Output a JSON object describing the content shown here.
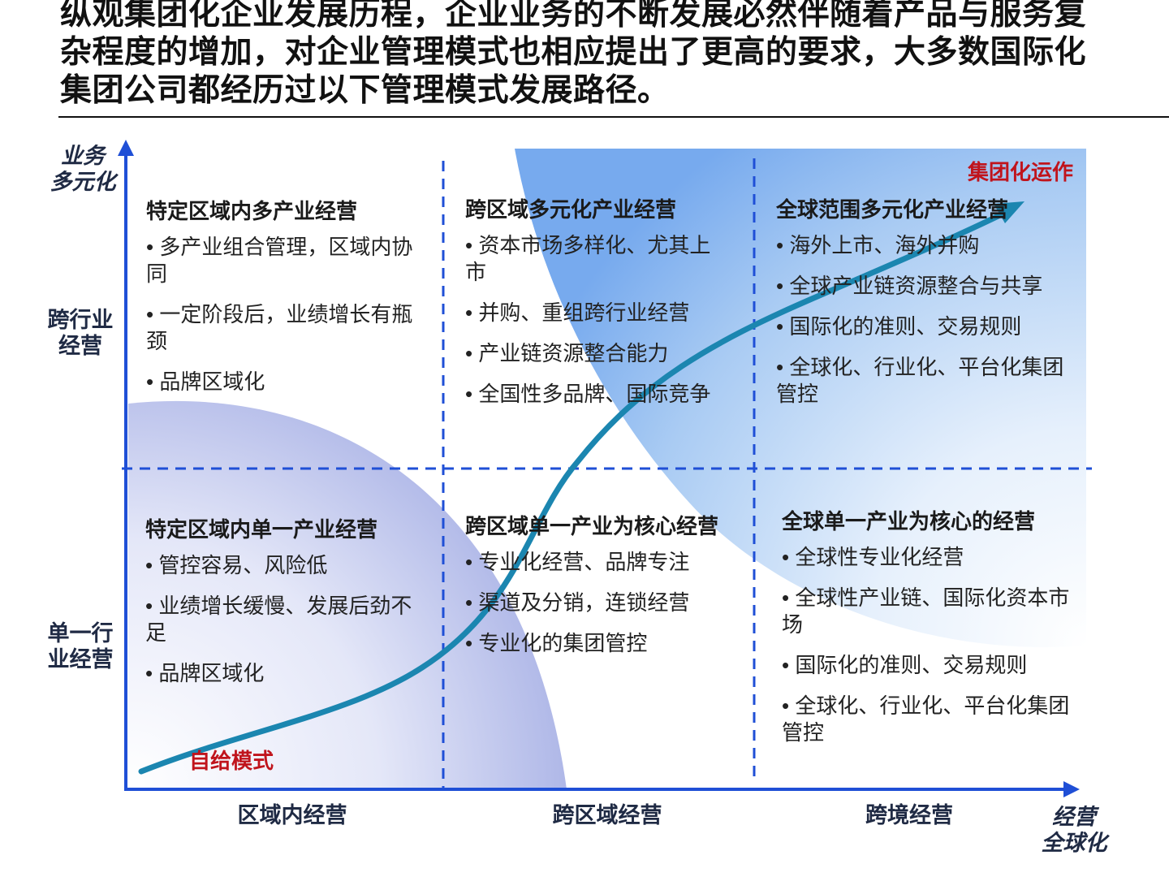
{
  "headline": "纵观集团化企业发展历程，企业业务的不断发展必然伴随着产品与服务复杂程度的增加，对企业管理模式也相应提出了更高的要求，大多数国际化集团公司都经历过以下管理模式发展路径。",
  "y_axis": {
    "title_line1": "业务",
    "title_line2": "多元化",
    "levels": [
      {
        "line1": "跨行业",
        "line2": "经营"
      },
      {
        "line1": "单一行",
        "line2": "业经营"
      }
    ]
  },
  "x_axis": {
    "title_line1": "经营",
    "title_line2": "全球化",
    "levels": [
      "区域内经营",
      "跨区域经营",
      "跨境经营"
    ]
  },
  "tags": {
    "top_right": "集团化运作",
    "bottom_left": "自给模式"
  },
  "cells": {
    "top_left": {
      "title": "特定区域内多产业经营",
      "items": [
        "多产业组合管理，区域内协同",
        "一定阶段后，业绩增长有瓶颈",
        "品牌区域化"
      ]
    },
    "top_mid": {
      "title": "跨区域多元化产业经营",
      "items": [
        "资本市场多样化、尤其上市",
        "并购、重组跨行业经营",
        "产业链资源整合能力",
        "全国性多品牌、国际竞争"
      ]
    },
    "top_right": {
      "title": "全球范围多元化产业经营",
      "items": [
        "海外上市、海外并购",
        "全球产业链资源整合与共享",
        "国际化的准则、交易规则",
        "全球化、行业化、平台化集团管控"
      ]
    },
    "bottom_left": {
      "title": "特定区域内单一产业经营",
      "items": [
        "管控容易、风险低",
        "业绩增长缓慢、发展后劲不足",
        "品牌区域化"
      ]
    },
    "bottom_mid": {
      "title": "跨区域单一产业为核心经营",
      "items": [
        "专业化经营、品牌专注",
        "渠道及分销，连锁经营",
        "专业化的集团管控"
      ]
    },
    "bottom_right": {
      "title": "全球单一产业为核心的经营",
      "items": [
        "全球性专业化经营",
        "全球性产业链、国际化资本市场",
        "国际化的准则、交易规则",
        "全球化、行业化、平台化集团管控"
      ]
    }
  },
  "colors": {
    "axis": "#1f4fd6",
    "curve": "#1b86b0",
    "tag_red": "#c0141c",
    "blue_light": "#d9e8fb",
    "blue_mid": "#7fb1ee",
    "purple_mid": "#9fa9e3"
  }
}
